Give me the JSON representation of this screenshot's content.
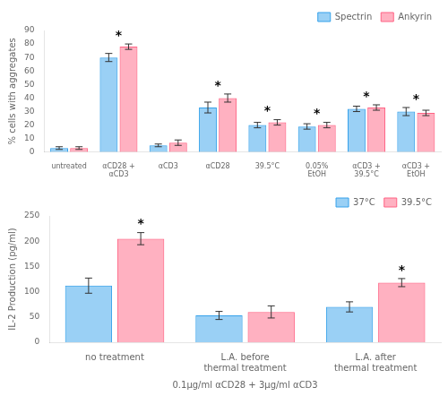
{
  "chart_data": [
    {
      "type": "bar",
      "categories": [
        "untreated",
        "αCD28 +\nαCD3",
        "αCD3",
        "αCD28",
        "39.5°C",
        "0.05%\nEtOH",
        "αCD3 +\n39.5°C",
        "αCD3 +\nEtOH"
      ],
      "series": [
        {
          "name": "Spectrin",
          "values": [
            3,
            70,
            5,
            33,
            20,
            19,
            32,
            30
          ],
          "errors": [
            1,
            3,
            1,
            4,
            2,
            2,
            2,
            3
          ]
        },
        {
          "name": "Ankyrin",
          "values": [
            3,
            78,
            7,
            40,
            22,
            20,
            33,
            29
          ],
          "errors": [
            1,
            2,
            2,
            3,
            2,
            2,
            2,
            2
          ]
        }
      ],
      "ylabel": "% cells with aggregates",
      "ylim": [
        0,
        90
      ],
      "yticks": [
        0,
        10,
        20,
        30,
        40,
        50,
        60,
        70,
        80,
        90
      ],
      "grid": false,
      "legend": "upper right",
      "annotations": [
        {
          "text": "*",
          "category": "αCD28 +\nαCD3"
        },
        {
          "text": "*",
          "category": "αCD28"
        },
        {
          "text": "*",
          "category": "39.5°C"
        },
        {
          "text": "*",
          "category": "0.05%\nEtOH"
        },
        {
          "text": "*",
          "category": "αCD3 +\n39.5°C"
        },
        {
          "text": "*",
          "category": "αCD3 +\nEtOH"
        }
      ]
    },
    {
      "type": "bar",
      "categories": [
        "no treatment",
        "L.A. before\nthermal treatment",
        "L.A. after\nthermal treatment"
      ],
      "series": [
        {
          "name": "37°C",
          "values": [
            112,
            53,
            70
          ],
          "errors": [
            15,
            8,
            10
          ]
        },
        {
          "name": "39.5°C",
          "values": [
            205,
            60,
            118
          ],
          "errors": [
            12,
            12,
            8
          ]
        }
      ],
      "xlabel": "0.1μg/ml αCD28 + 3μg/ml αCD3",
      "ylabel": "IL-2 Production (pg/ml)",
      "ylim": [
        0,
        250
      ],
      "yticks": [
        0,
        50,
        100,
        150,
        200,
        250
      ],
      "grid": false,
      "legend": "upper right",
      "annotations": [
        {
          "text": "*",
          "category": "no treatment",
          "series": "39.5°C"
        },
        {
          "text": "*",
          "category": "L.A. after\nthermal treatment",
          "series": "39.5°C"
        }
      ]
    }
  ]
}
